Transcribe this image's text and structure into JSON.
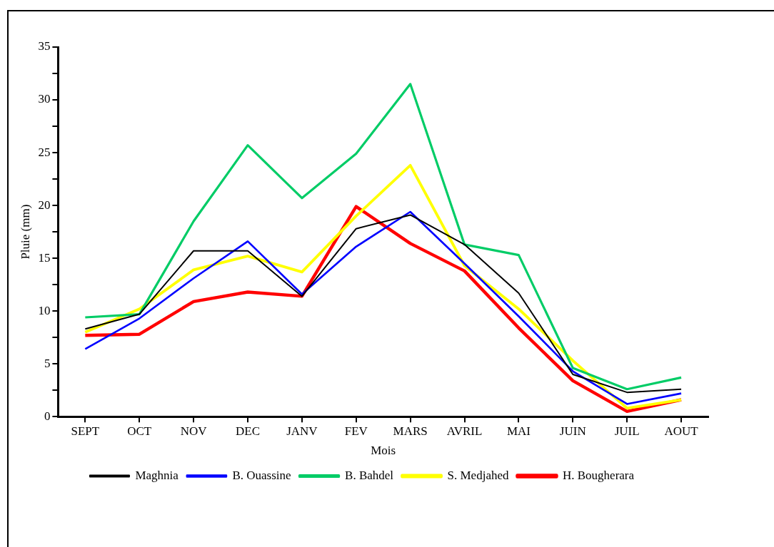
{
  "chart_data": {
    "type": "line",
    "xlabel": "Mois",
    "ylabel": "Pluie (mm)",
    "categories": [
      "SEPT",
      "OCT",
      "NOV",
      "DEC",
      "JANV",
      "FEV",
      "MARS",
      "AVRIL",
      "MAI",
      "JUIN",
      "JUIL",
      "AOUT"
    ],
    "series": [
      {
        "name": "Maghnia",
        "color": "#000000",
        "values": [
          8.3,
          9.7,
          15.7,
          15.7,
          11.4,
          17.8,
          19.1,
          16.3,
          11.7,
          4.0,
          2.3,
          2.6
        ]
      },
      {
        "name": "B. Ouassine",
        "color": "#0000ff",
        "values": [
          6.4,
          9.3,
          13.1,
          16.6,
          11.6,
          16.1,
          19.4,
          14.5,
          9.5,
          4.3,
          1.2,
          2.2
        ]
      },
      {
        "name": "B. Bahdel",
        "color": "#00cc66",
        "values": [
          9.4,
          9.7,
          18.5,
          25.7,
          20.7,
          24.9,
          31.5,
          16.3,
          15.3,
          4.6,
          2.6,
          3.7
        ]
      },
      {
        "name": "S. Medjahed",
        "color": "#ffff00",
        "values": [
          8.0,
          10.2,
          13.9,
          15.2,
          13.7,
          19.0,
          23.8,
          14.3,
          10.2,
          5.3,
          0.8,
          1.6
        ]
      },
      {
        "name": "H. Bougherara",
        "color": "#ff0000",
        "values": [
          7.7,
          7.8,
          10.9,
          11.8,
          11.4,
          19.9,
          16.4,
          13.8,
          8.4,
          3.4,
          0.5,
          1.6
        ]
      }
    ],
    "ylim": [
      0,
      35
    ],
    "yticks": [
      0,
      {
        "value": 2.5,
        "label": null
      },
      5,
      {
        "value": 7.5,
        "label": null
      },
      10,
      {
        "value": 12.5,
        "label": null
      },
      15,
      {
        "value": 17.5,
        "label": null
      },
      20,
      {
        "value": 22.5,
        "label": null
      },
      25,
      {
        "value": 27.5,
        "label": null
      },
      30,
      {
        "value": 32.5,
        "label": null
      },
      35
    ],
    "grid": false,
    "legend": "bottom",
    "marker": "none",
    "line_style": "solid"
  }
}
